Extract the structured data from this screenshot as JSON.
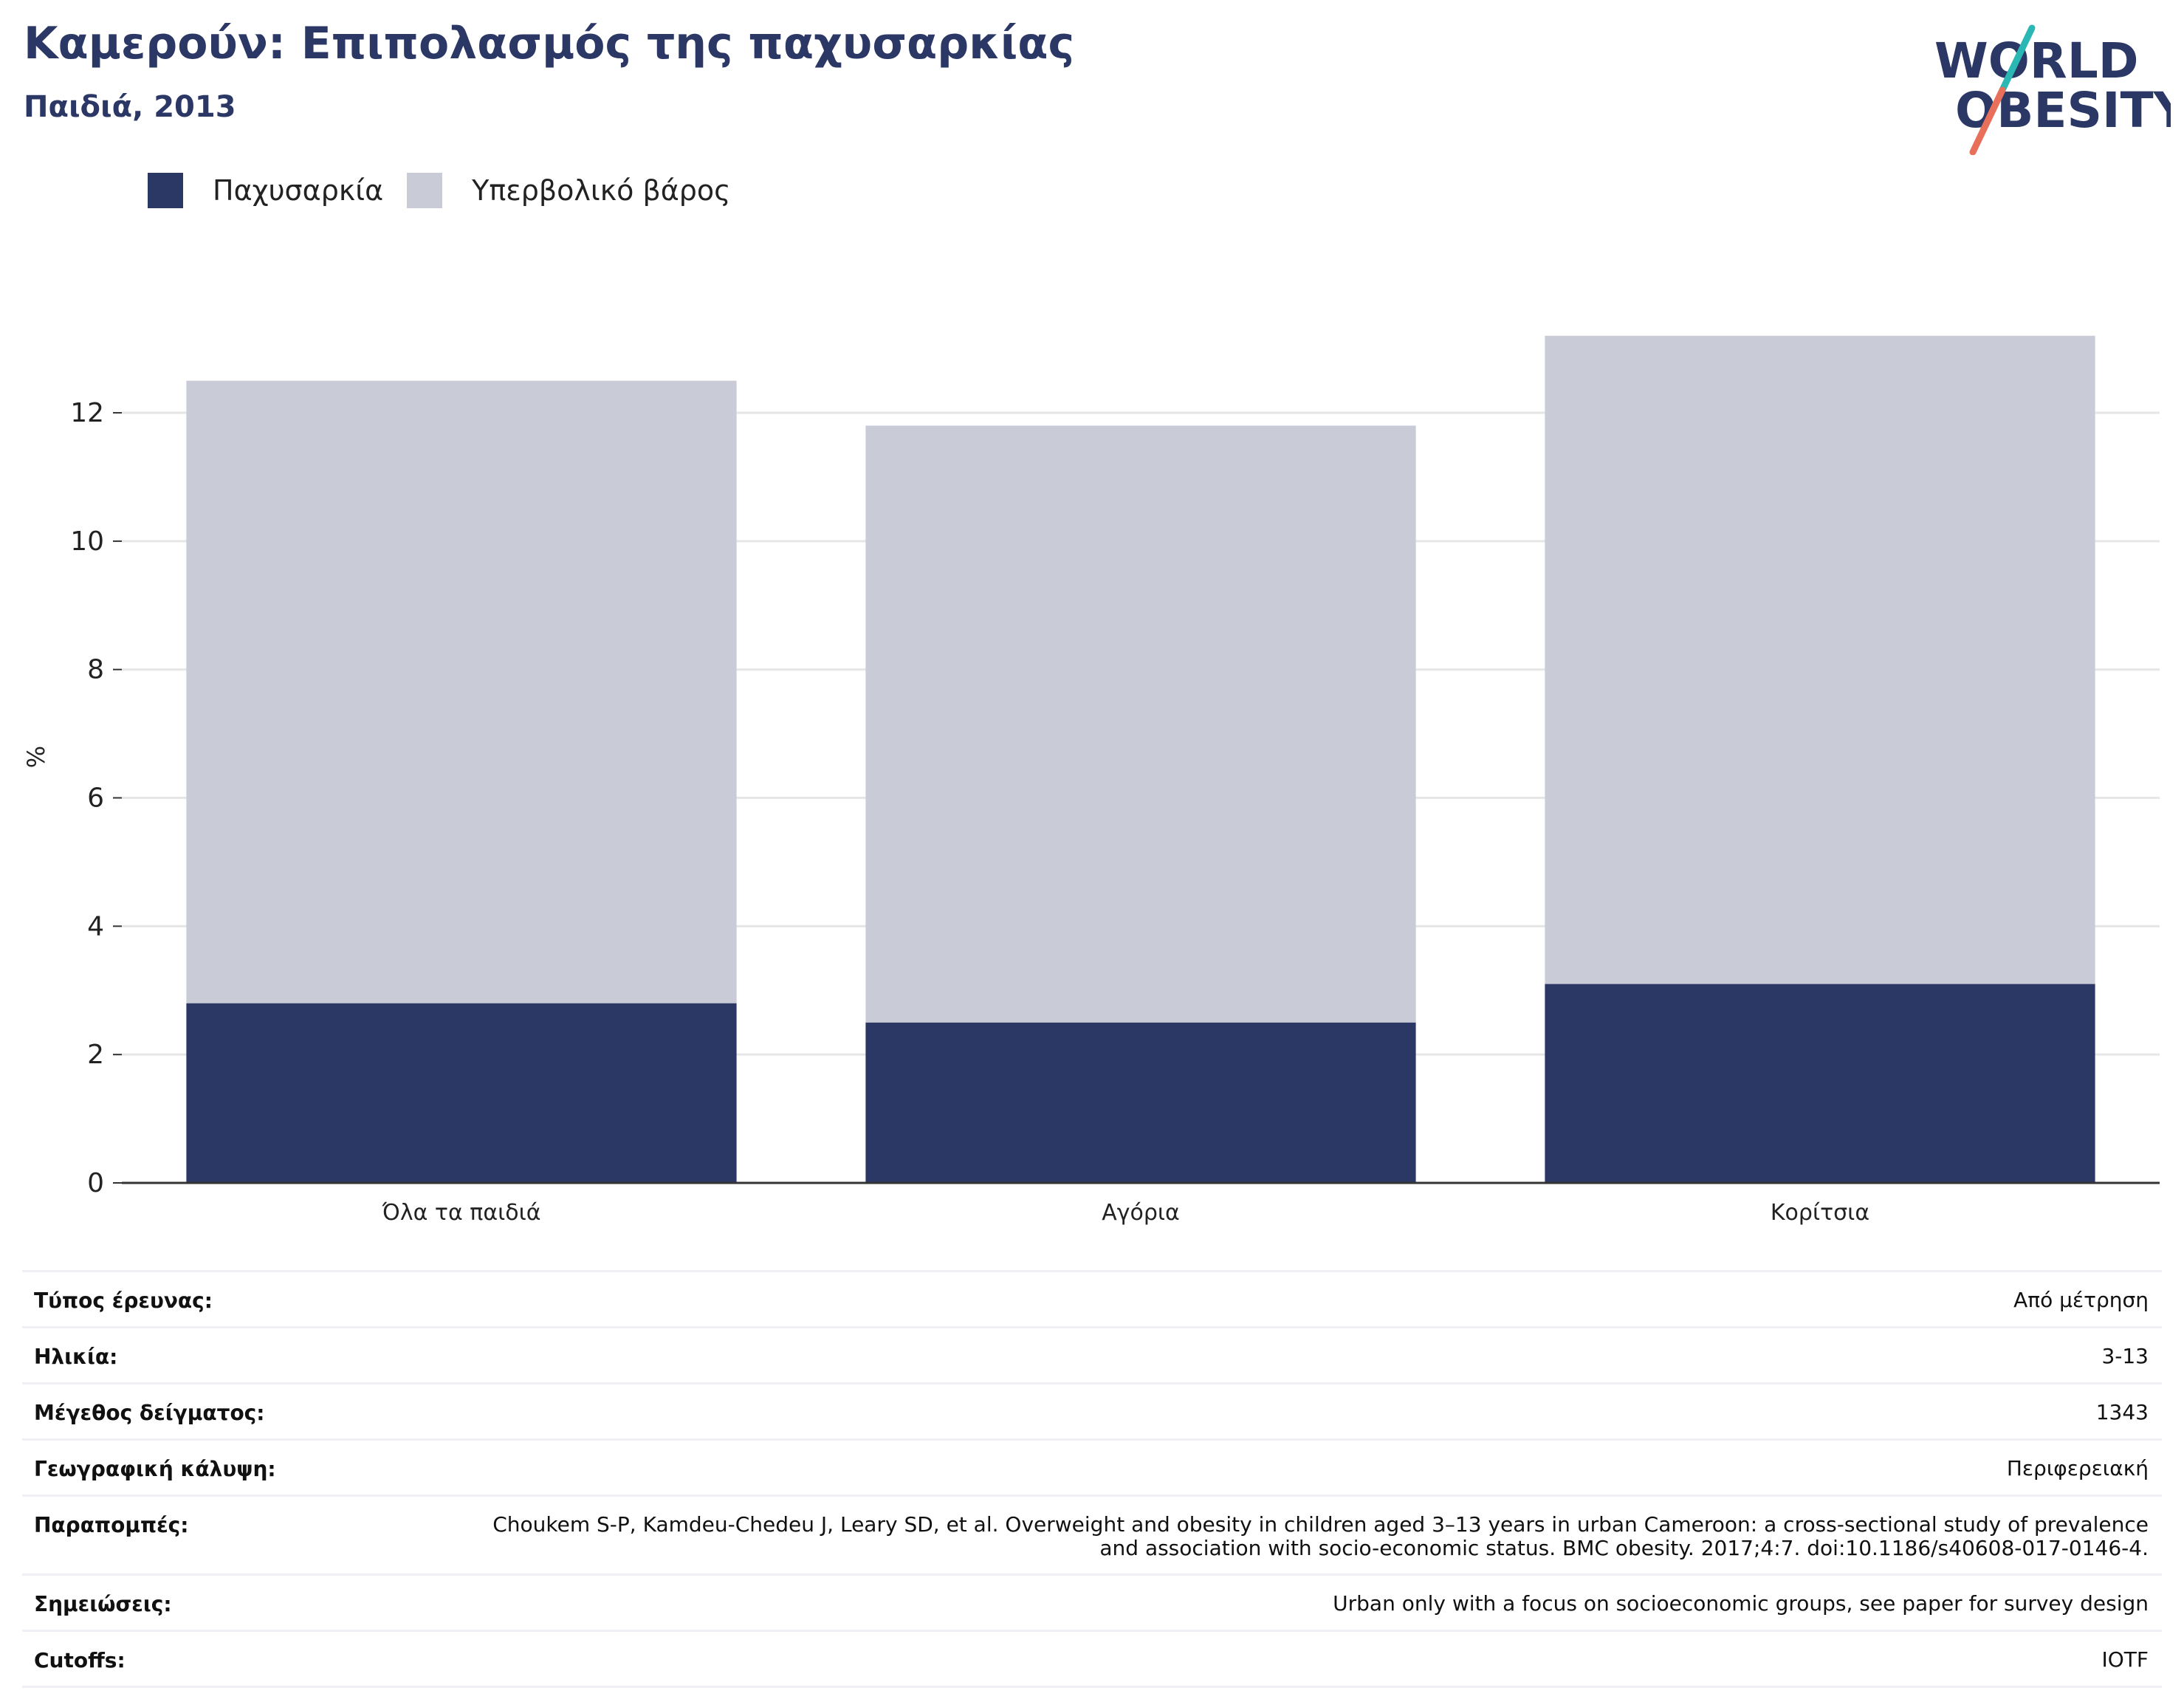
{
  "header": {
    "title": "Καμερούν: Επιπολασμός της παχυσαρκίας",
    "subtitle": "Παιδιά, 2013"
  },
  "logo": {
    "line1": "WORLD",
    "line2": "OBESITY",
    "colors": {
      "text": "#2b3765",
      "slash_top": "#2bb7b3",
      "slash_bottom": "#e8705a"
    }
  },
  "colors": {
    "obesity": "#2b3765",
    "overweight": "#c9cbd7",
    "gridline": "#e6e6e6",
    "axis": "#333333"
  },
  "chart_data": {
    "type": "bar",
    "stacked": true,
    "categories": [
      "Όλα τα παιδιά",
      "Αγόρια",
      "Κορίτσια"
    ],
    "series": [
      {
        "name": "Παχυσαρκία",
        "values": [
          2.8,
          2.5,
          3.1
        ],
        "color": "#2b3765"
      },
      {
        "name": "Υπερβολικό βάρος",
        "values": [
          9.7,
          9.3,
          10.1
        ],
        "color": "#c9cbd7"
      }
    ],
    "ylabel": "%",
    "ylim": [
      0,
      13.6
    ],
    "yticks": [
      0,
      2,
      4,
      6,
      8,
      10,
      12
    ],
    "grid": true,
    "legend_position": "top-left"
  },
  "info": [
    {
      "label": "Τύπος έρευνας:",
      "value": "Από μέτρηση"
    },
    {
      "label": "Ηλικία:",
      "value": "3-13"
    },
    {
      "label": "Μέγεθος δείγματος:",
      "value": "1343"
    },
    {
      "label": "Γεωγραφική κάλυψη:",
      "value": "Περιφερειακή"
    },
    {
      "label": "Παραπομπές:",
      "value": "Choukem S-P, Kamdeu-Chedeu J, Leary SD, et al. Overweight and obesity in children aged 3–13 years in urban Cameroon: a cross-sectional study of prevalence and association with socio-economic status. BMC obesity. 2017;4:7. doi:10.1186/s40608-017-0146-4."
    },
    {
      "label": "Σημειώσεις:",
      "value": "Urban only with a focus on socioeconomic groups, see paper for survey design"
    },
    {
      "label": "Cutoffs:",
      "value": "IOTF"
    }
  ]
}
